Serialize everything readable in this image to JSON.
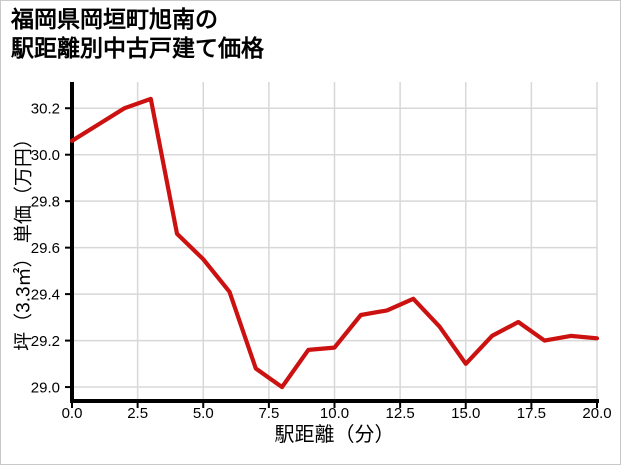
{
  "page": {
    "background": "#ffffff",
    "border_color": "#c9c9c9"
  },
  "chart_data": {
    "type": "line",
    "title_lines": [
      "福岡県岡垣町旭南の",
      "駅距離別中古戸建て価格"
    ],
    "xlabel": "駅距離（分）",
    "ylabel": "坪（3.3㎡） 単価（万円）",
    "x": [
      0,
      1,
      2,
      3,
      4,
      5,
      6,
      7,
      8,
      9,
      10,
      11,
      12,
      13,
      14,
      15,
      16,
      17,
      18,
      19,
      20
    ],
    "y": [
      30.06,
      30.13,
      30.2,
      30.24,
      29.66,
      29.55,
      29.41,
      29.08,
      29.0,
      29.16,
      29.17,
      29.31,
      29.33,
      29.38,
      29.26,
      29.1,
      29.22,
      29.28,
      29.2,
      29.22,
      29.21
    ],
    "xlim": [
      0,
      20
    ],
    "ylim": [
      28.94,
      30.3
    ],
    "xticks": [
      0,
      2.5,
      5,
      7.5,
      10,
      12.5,
      15,
      17.5,
      20
    ],
    "xtick_labels": [
      "0.0",
      "2.5",
      "5.0",
      "7.5",
      "10.0",
      "12.5",
      "15.0",
      "17.5",
      "20.0"
    ],
    "yticks": [
      29.0,
      29.2,
      29.4,
      29.6,
      29.8,
      30.0,
      30.2
    ],
    "ytick_labels": [
      "29.0",
      "29.2",
      "29.4",
      "29.6",
      "29.8",
      "30.0",
      "30.2"
    ],
    "grid": true,
    "legend": false,
    "line_color": "#cc1111",
    "grid_color": "#d8d8d8",
    "axis_color": "#000000",
    "text_color": "#000000"
  }
}
